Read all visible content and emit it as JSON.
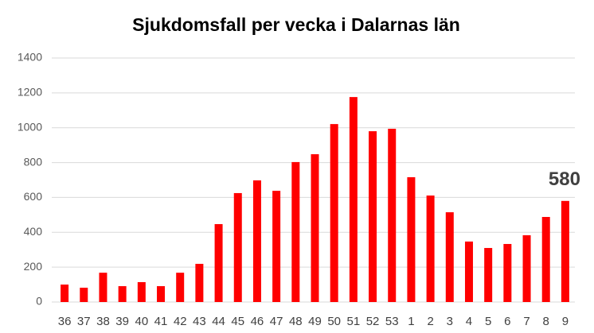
{
  "chart_data": {
    "type": "bar",
    "title": "Sjukdomsfall per vecka i Dalarnas län",
    "categories": [
      "36",
      "37",
      "38",
      "39",
      "40",
      "41",
      "42",
      "43",
      "44",
      "45",
      "46",
      "47",
      "48",
      "49",
      "50",
      "51",
      "52",
      "53",
      "1",
      "2",
      "3",
      "4",
      "5",
      "6",
      "7",
      "8",
      "9"
    ],
    "values": [
      100,
      82,
      168,
      91,
      114,
      91,
      168,
      219,
      447,
      625,
      698,
      638,
      803,
      848,
      1021,
      1176,
      980,
      994,
      716,
      611,
      515,
      347,
      310,
      333,
      383,
      488,
      580
    ],
    "color": "#ff0000",
    "ylim": [
      0,
      1400
    ],
    "yticks": [
      0,
      200,
      400,
      600,
      800,
      1000,
      1200,
      1400
    ],
    "grid": true,
    "annotation": {
      "category": "9",
      "value": 580
    }
  }
}
